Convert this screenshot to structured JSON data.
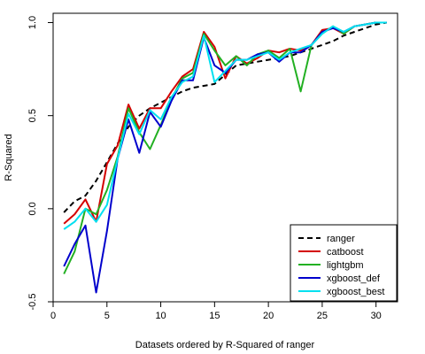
{
  "chart_data": {
    "type": "line",
    "xlabel": "Datasets ordered by R-Squared of ranger",
    "ylabel": "R-Squared",
    "xlim": [
      0,
      32
    ],
    "ylim": [
      -0.5,
      1.05
    ],
    "x_ticks": [
      0,
      5,
      10,
      15,
      20,
      25,
      30
    ],
    "y_ticks": [
      -0.5,
      0.0,
      0.5,
      1.0
    ],
    "x_tick_labels": [
      "0",
      "5",
      "10",
      "15",
      "20",
      "25",
      "30"
    ],
    "y_tick_labels": [
      "-0.5",
      "0.0",
      "0.5",
      "1.0"
    ],
    "legend_position": "bottom-right",
    "x": [
      1,
      2,
      3,
      4,
      5,
      6,
      7,
      8,
      9,
      10,
      11,
      12,
      13,
      14,
      15,
      16,
      17,
      18,
      19,
      20,
      21,
      22,
      23,
      24,
      25,
      26,
      27,
      28,
      29,
      30,
      31
    ],
    "series": [
      {
        "name": "ranger",
        "color": "#000000",
        "dashed": true,
        "values": [
          -0.02,
          0.04,
          0.07,
          0.15,
          0.25,
          0.35,
          0.44,
          0.5,
          0.54,
          0.57,
          0.6,
          0.63,
          0.65,
          0.66,
          0.67,
          0.72,
          0.77,
          0.78,
          0.79,
          0.8,
          0.81,
          0.82,
          0.84,
          0.86,
          0.88,
          0.9,
          0.93,
          0.95,
          0.97,
          0.99,
          1.0
        ]
      },
      {
        "name": "catboost",
        "color": "#d40000",
        "dashed": false,
        "values": [
          -0.08,
          -0.03,
          0.05,
          -0.07,
          0.24,
          0.34,
          0.56,
          0.43,
          0.54,
          0.54,
          0.63,
          0.71,
          0.75,
          0.95,
          0.87,
          0.7,
          0.82,
          0.78,
          0.81,
          0.85,
          0.84,
          0.86,
          0.85,
          0.88,
          0.96,
          0.97,
          0.94,
          0.98,
          0.99,
          1.0,
          1.0
        ]
      },
      {
        "name": "lightgbm",
        "color": "#22b022",
        "dashed": false,
        "values": [
          -0.35,
          -0.23,
          0.0,
          -0.03,
          0.1,
          0.28,
          0.54,
          0.41,
          0.32,
          0.45,
          0.59,
          0.7,
          0.73,
          0.94,
          0.85,
          0.77,
          0.82,
          0.77,
          0.83,
          0.85,
          0.81,
          0.86,
          0.63,
          0.88,
          0.94,
          0.98,
          0.94,
          0.98,
          0.99,
          1.0,
          1.0
        ]
      },
      {
        "name": "xgboost_def",
        "color": "#0000cc",
        "dashed": false,
        "values": [
          -0.31,
          -0.19,
          -0.09,
          -0.45,
          -0.12,
          0.27,
          0.48,
          0.3,
          0.52,
          0.44,
          0.58,
          0.69,
          0.69,
          0.92,
          0.77,
          0.73,
          0.8,
          0.8,
          0.83,
          0.84,
          0.79,
          0.84,
          0.84,
          0.88,
          0.95,
          0.97,
          0.95,
          0.98,
          0.99,
          1.0,
          1.0
        ]
      },
      {
        "name": "xgboost_best",
        "color": "#00e0f0",
        "dashed": false,
        "values": [
          -0.11,
          -0.07,
          0.0,
          -0.07,
          0.02,
          0.27,
          0.51,
          0.4,
          0.53,
          0.48,
          0.6,
          0.68,
          0.71,
          0.93,
          0.68,
          0.74,
          0.8,
          0.8,
          0.82,
          0.84,
          0.8,
          0.84,
          0.86,
          0.88,
          0.94,
          0.98,
          0.95,
          0.98,
          0.99,
          1.0,
          1.0
        ]
      }
    ]
  }
}
